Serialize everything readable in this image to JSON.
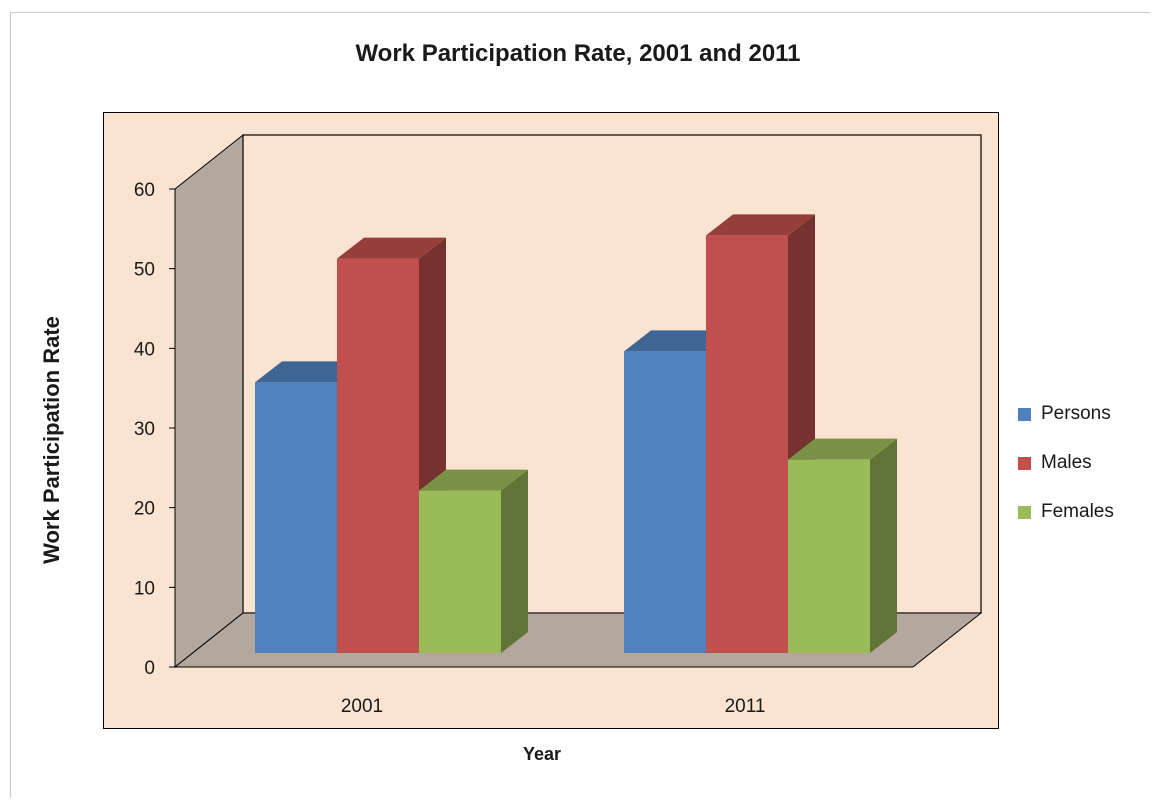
{
  "chart_data": {
    "type": "bar",
    "title": "Work Participation Rate, 2001 and 2011",
    "xlabel": "Year",
    "ylabel": "Work Participation Rate",
    "categories": [
      "2001",
      "2011"
    ],
    "series": [
      {
        "name": "Persons",
        "values": [
          35,
          39
        ],
        "color": "#4f81bd"
      },
      {
        "name": "Males",
        "values": [
          51,
          54
        ],
        "color": "#c0504d"
      },
      {
        "name": "Females",
        "values": [
          21,
          25
        ],
        "color": "#9bbb59"
      }
    ],
    "ylim": [
      0,
      60
    ],
    "yticks": [
      "0",
      "10",
      "20",
      "30",
      "40",
      "50",
      "60"
    ],
    "legend_position": "right",
    "grid": false,
    "style": "3d-clustered-column"
  }
}
